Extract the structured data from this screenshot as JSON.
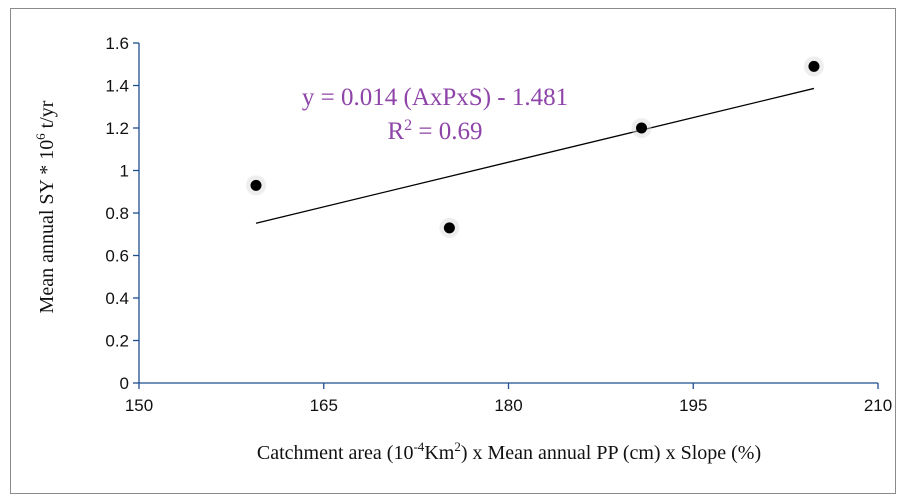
{
  "chart_data": {
    "type": "scatter",
    "xlabel_parts": [
      "Catchment area (10",
      "-4",
      "Km",
      "2",
      ") x Mean annual PP (cm) x Slope (%)"
    ],
    "ylabel_parts": [
      "Mean annual SY  * 10",
      "6",
      " t/yr"
    ],
    "xlim": [
      150,
      210
    ],
    "ylim": [
      0,
      1.6
    ],
    "xticks": [
      150,
      165,
      180,
      195,
      210
    ],
    "yticks": [
      0,
      0.2,
      0.4,
      0.6,
      0.8,
      1,
      1.2,
      1.4,
      1.6
    ],
    "xtick_labels": [
      "150",
      "165",
      "180",
      "195",
      "210"
    ],
    "ytick_labels": [
      "0",
      "0.2",
      "0.4",
      "0.6",
      "0.8",
      "1",
      "1.2",
      "1.4",
      "1.6"
    ],
    "points": [
      {
        "x": 159.5,
        "y": 0.93
      },
      {
        "x": 175.2,
        "y": 0.73
      },
      {
        "x": 190.8,
        "y": 1.2
      },
      {
        "x": 204.8,
        "y": 1.49
      }
    ],
    "trendline": {
      "slope": 0.014,
      "intercept": -1.481,
      "x_range": [
        159.5,
        204.8
      ]
    },
    "equation": "y = 0.014 (AxPxS) - 1.481",
    "r2_label_parts": [
      "R",
      "2",
      " = 0.69"
    ],
    "colors": {
      "axis": "#1f4f8f",
      "points": "#000000",
      "trendline": "#000000",
      "equation": "#8e44a8"
    },
    "grid": false,
    "legend": "none"
  }
}
